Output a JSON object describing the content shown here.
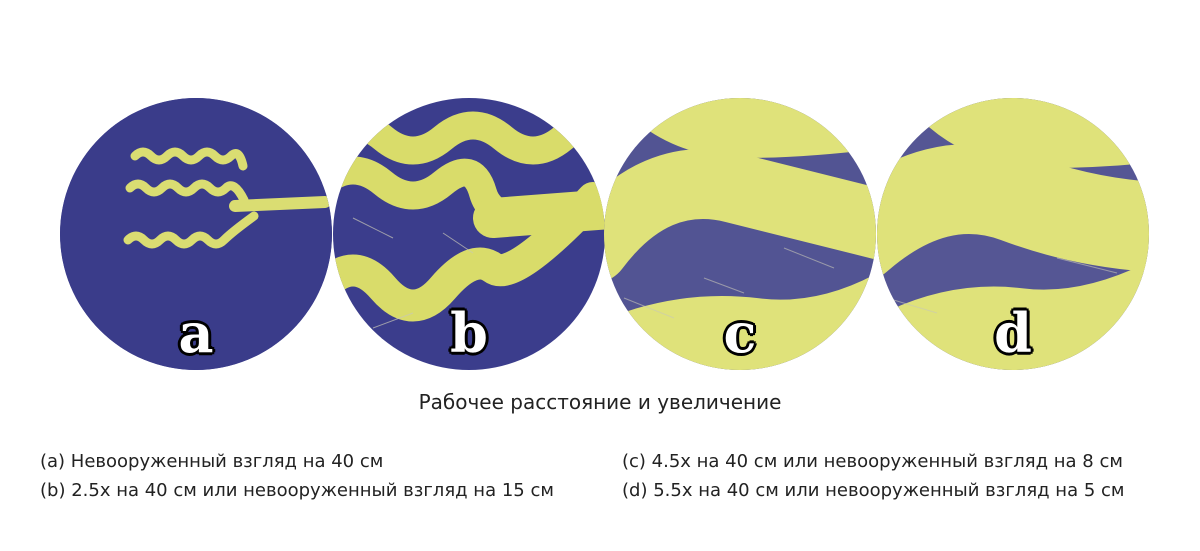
{
  "panels": [
    {
      "letter": "a"
    },
    {
      "letter": "b"
    },
    {
      "letter": "c"
    },
    {
      "letter": "d"
    }
  ],
  "caption_title": "Рабочее расстояние и увеличение",
  "legend_left": [
    "(a) Невооруженный взгляд на 40 см",
    "(b) 2.5x на 40 см или невооруженный взгляд на 15 см"
  ],
  "legend_right": [
    "(c) 4.5x на 40 см или невооруженный взгляд на 8 см",
    "(d) 5.5x на 40 см или невооруженный взгляд на 5 см"
  ],
  "colors": {
    "fabric": "#3b3d8c",
    "fabric_dark": "#2b2c6e",
    "yarn": "#d9dc6a",
    "yarn_light": "#eef09a",
    "fiber": "#c9c8b8"
  }
}
